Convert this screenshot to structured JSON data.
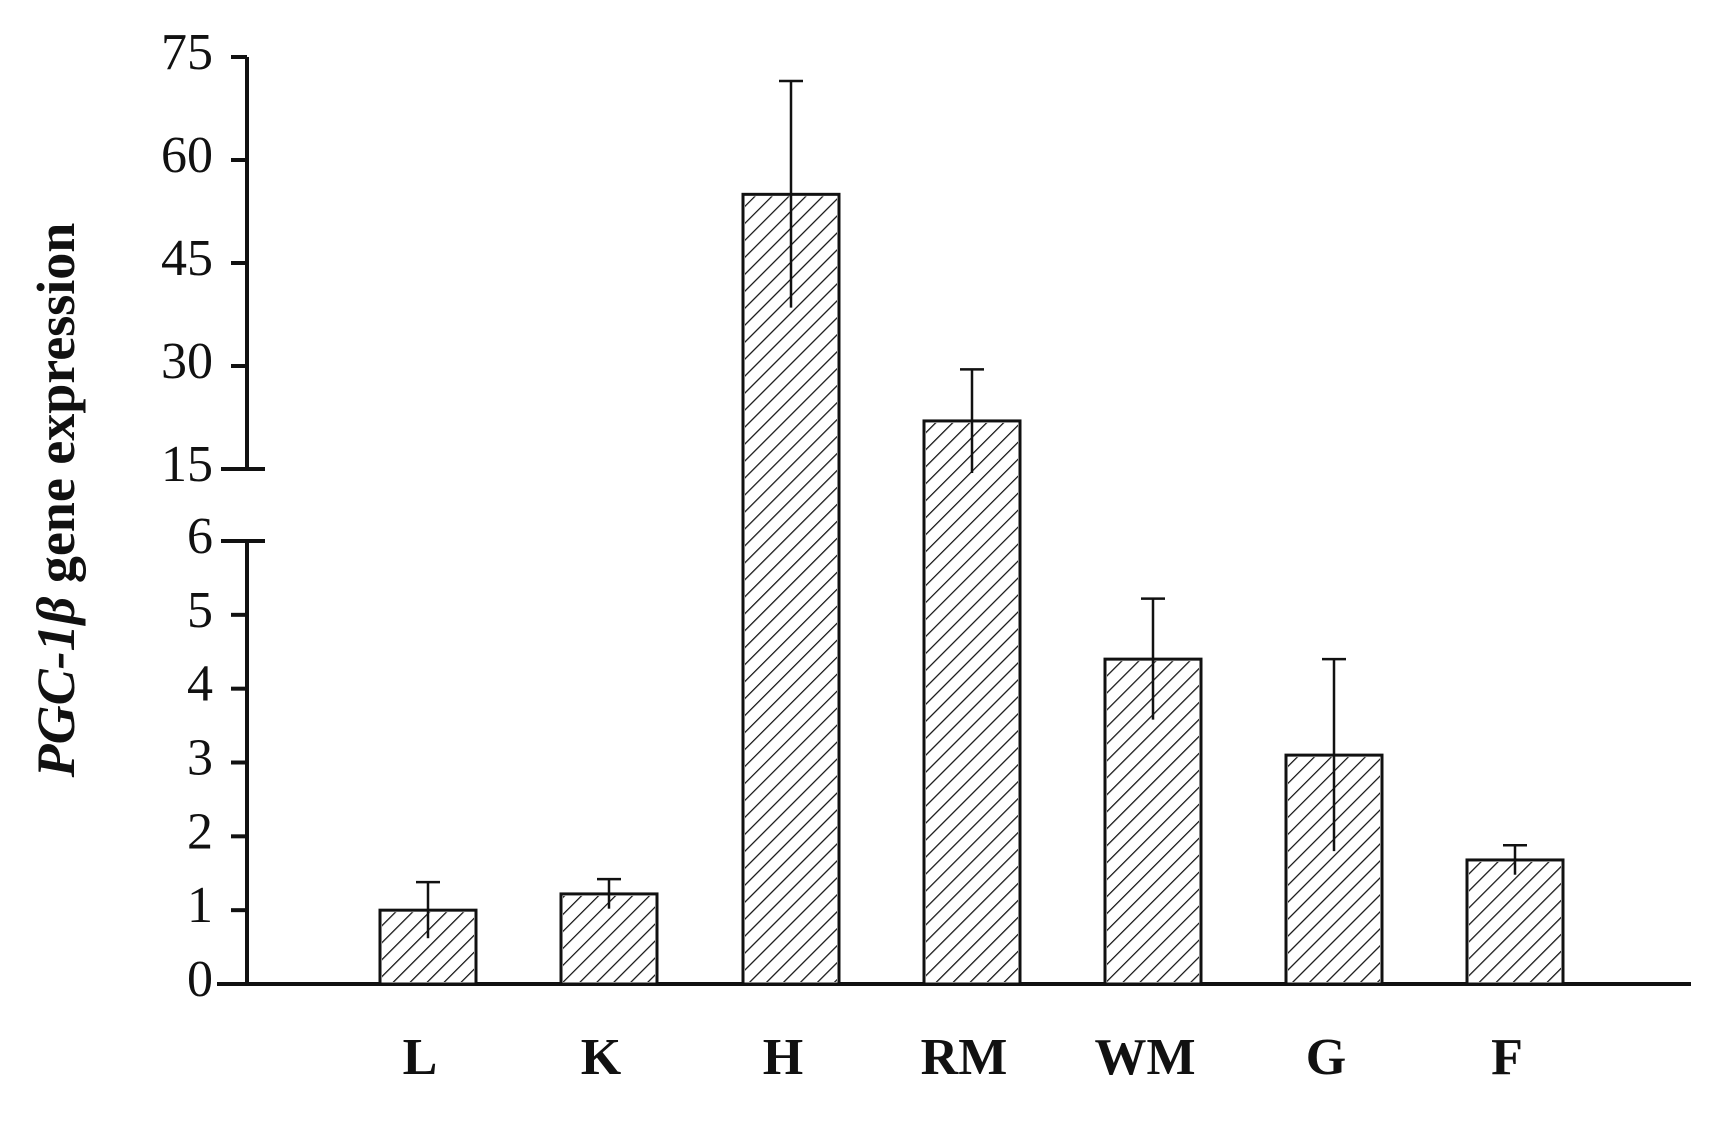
{
  "chart_data": {
    "type": "bar",
    "y_label": {
      "italic": "PGC-1β",
      "rest": "gene expression"
    },
    "categories": [
      "L",
      "K",
      "H",
      "RM",
      "WM",
      "G",
      "F"
    ],
    "values": [
      1.0,
      1.22,
      55,
      22,
      4.4,
      3.1,
      1.68
    ],
    "errors": [
      0.38,
      0.2,
      16.5,
      7.5,
      0.82,
      1.3,
      0.2
    ],
    "color": "#ffffff",
    "hatch": true,
    "y_segments": [
      {
        "ylim": [
          0,
          6
        ],
        "yticks": [
          0,
          1,
          2,
          3,
          4,
          5,
          6
        ]
      },
      {
        "ylim": [
          15,
          75
        ],
        "yticks": [
          15,
          30,
          45,
          60,
          75
        ]
      }
    ]
  }
}
